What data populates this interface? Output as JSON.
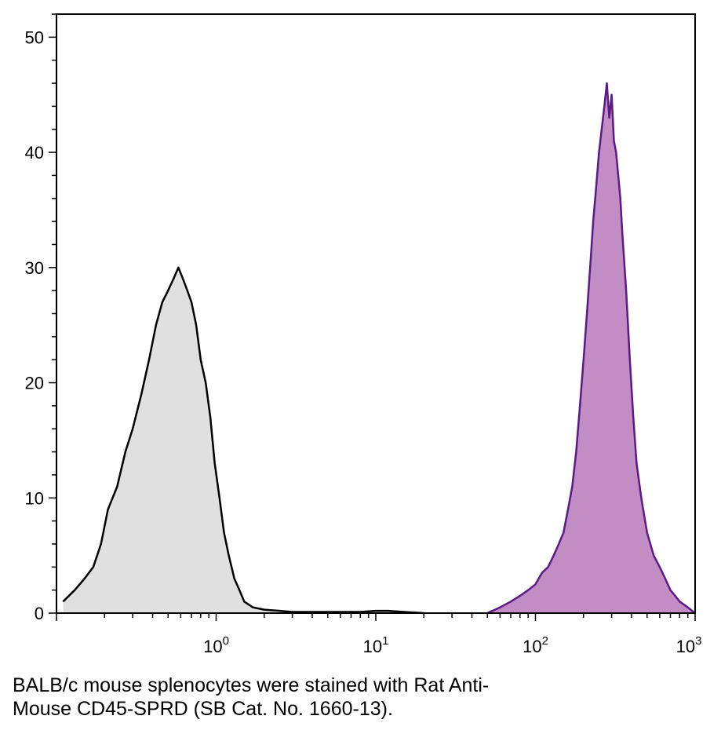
{
  "chart_data": {
    "type": "area",
    "title": "",
    "xlabel": "",
    "ylabel": "",
    "x_scale": "log",
    "xlim": [
      0.1,
      1000
    ],
    "ylim": [
      0,
      52
    ],
    "grid": false,
    "legend": "none",
    "y_ticks": [
      {
        "value": 0,
        "label": "0"
      },
      {
        "value": 10,
        "label": "10"
      },
      {
        "value": 20,
        "label": "20"
      },
      {
        "value": 30,
        "label": "30"
      },
      {
        "value": 40,
        "label": "40"
      },
      {
        "value": 50,
        "label": "50"
      }
    ],
    "x_ticks": [
      {
        "value": 1,
        "base": "10",
        "exp": "0"
      },
      {
        "value": 10,
        "base": "10",
        "exp": "1"
      },
      {
        "value": 100,
        "base": "10",
        "exp": "2"
      },
      {
        "value": 1000,
        "base": "10",
        "exp": "3"
      }
    ],
    "series": [
      {
        "fill": "#e0e0e0",
        "stroke": "#000000",
        "x": [
          0.11,
          0.13,
          0.15,
          0.17,
          0.19,
          0.21,
          0.24,
          0.27,
          0.3,
          0.34,
          0.38,
          0.42,
          0.46,
          0.5,
          0.54,
          0.58,
          0.62,
          0.66,
          0.7,
          0.75,
          0.8,
          0.86,
          0.92,
          0.98,
          1.05,
          1.12,
          1.2,
          1.3,
          1.4,
          1.5,
          1.7,
          2.0,
          2.5,
          3.0,
          4.0,
          5.0,
          6.0,
          8.0,
          10,
          12,
          15,
          20
        ],
        "values": [
          1,
          2,
          3,
          4,
          6,
          9,
          11,
          14,
          16,
          19,
          22,
          25,
          27,
          28,
          29,
          30,
          29,
          28,
          27,
          25,
          22,
          20,
          17,
          13,
          10,
          7,
          5,
          3,
          2,
          1,
          0.5,
          0.3,
          0.2,
          0.1,
          0.1,
          0.1,
          0.1,
          0.1,
          0.2,
          0.2,
          0.1,
          0
        ]
      },
      {
        "fill": "#c28dc4",
        "stroke": "#5c1a86",
        "x": [
          50,
          60,
          70,
          80,
          90,
          100,
          110,
          120,
          130,
          140,
          150,
          160,
          170,
          180,
          190,
          200,
          210,
          220,
          230,
          240,
          250,
          260,
          270,
          280,
          290,
          300,
          310,
          320,
          330,
          340,
          350,
          370,
          390,
          410,
          430,
          460,
          500,
          550,
          600,
          650,
          700,
          750,
          800,
          900,
          1000
        ],
        "values": [
          0,
          0.5,
          1,
          1.5,
          2,
          2.5,
          3.5,
          4,
          5,
          6,
          7,
          9,
          11,
          14,
          18,
          22,
          26,
          30,
          34,
          37,
          40,
          42,
          44,
          46,
          43,
          45,
          41,
          40,
          38,
          36,
          33,
          28,
          22,
          17,
          13,
          10,
          7,
          5,
          4,
          3,
          2,
          1.5,
          1,
          0.5,
          0
        ]
      }
    ]
  },
  "caption": {
    "line1": "BALB/c mouse splenocytes were stained with Rat Anti-",
    "line2": "Mouse CD45-SPRD (SB Cat. No. 1660-13)."
  }
}
